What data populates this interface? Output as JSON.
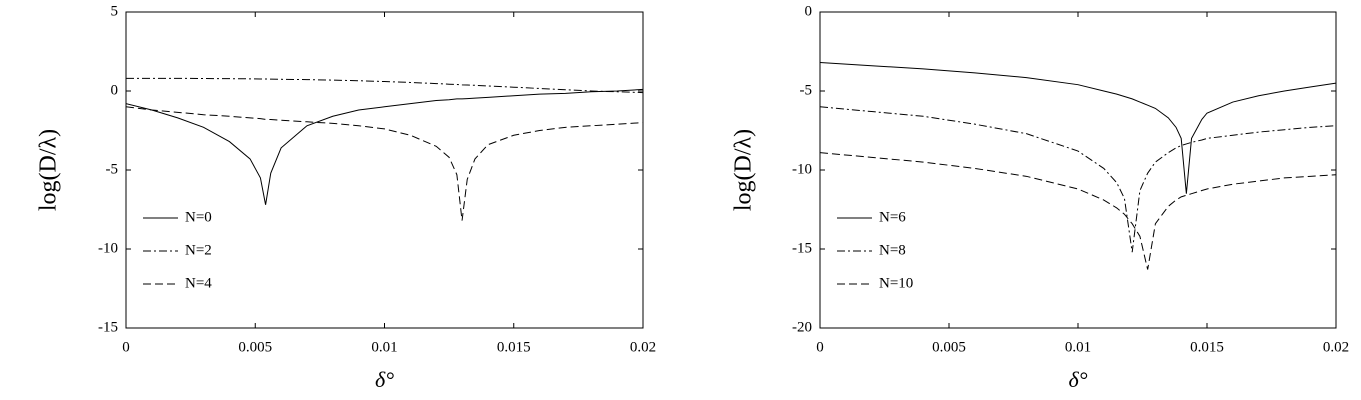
{
  "chart_data": [
    {
      "type": "line",
      "xlabel": "δ°",
      "ylabel": "log(D/λ)",
      "x": [
        0,
        0.001,
        0.002,
        0.003,
        0.004,
        0.0048,
        0.0052,
        0.0054,
        0.0056,
        0.006,
        0.007,
        0.008,
        0.009,
        0.01,
        0.011,
        0.012,
        0.0125,
        0.0128,
        0.013,
        0.0132,
        0.0135,
        0.014,
        0.015,
        0.016,
        0.017,
        0.018,
        0.019,
        0.02
      ],
      "xlim": [
        0,
        0.02
      ],
      "xticks": [
        0,
        0.005,
        0.01,
        0.015,
        0.02
      ],
      "ylim": [
        -15,
        5
      ],
      "yticks": [
        -15,
        -10,
        -5,
        0,
        5
      ],
      "legend": "lower left",
      "series": [
        {
          "name": "N=0",
          "color": "#000000",
          "dash": "solid",
          "values": [
            -0.8,
            -1.2,
            -1.7,
            -2.3,
            -3.2,
            -4.3,
            -5.5,
            -7.2,
            -5.2,
            -3.6,
            -2.2,
            -1.6,
            -1.2,
            -1.0,
            -0.8,
            -0.6,
            -0.55,
            -0.5,
            -0.5,
            -0.48,
            -0.45,
            -0.4,
            -0.3,
            -0.2,
            -0.15,
            -0.05,
            0,
            0.1
          ]
        },
        {
          "name": "N=2",
          "color": "#000000",
          "dash": "dashdot",
          "values": [
            0.8,
            0.8,
            0.8,
            0.79,
            0.78,
            0.77,
            0.76,
            0.76,
            0.75,
            0.74,
            0.72,
            0.69,
            0.65,
            0.6,
            0.54,
            0.47,
            0.43,
            0.41,
            0.39,
            0.38,
            0.36,
            0.32,
            0.24,
            0.16,
            0.08,
            0,
            -0.05,
            -0.1
          ]
        },
        {
          "name": "N=4",
          "color": "#000000",
          "dash": "dashed",
          "values": [
            -1.0,
            -1.2,
            -1.35,
            -1.5,
            -1.6,
            -1.7,
            -1.75,
            -1.8,
            -1.8,
            -1.85,
            -1.95,
            -2.05,
            -2.2,
            -2.4,
            -2.8,
            -3.5,
            -4.2,
            -5.3,
            -8.2,
            -5.6,
            -4.3,
            -3.4,
            -2.8,
            -2.5,
            -2.3,
            -2.2,
            -2.1,
            -2.0
          ]
        }
      ]
    },
    {
      "type": "line",
      "xlabel": "δ°",
      "ylabel": "log(D/λ)",
      "x": [
        0,
        0.002,
        0.004,
        0.006,
        0.008,
        0.01,
        0.011,
        0.0115,
        0.0118,
        0.0121,
        0.0124,
        0.0127,
        0.013,
        0.0135,
        0.0138,
        0.014,
        0.0142,
        0.0144,
        0.0148,
        0.015,
        0.016,
        0.017,
        0.018,
        0.019,
        0.02
      ],
      "xlim": [
        0,
        0.02
      ],
      "xticks": [
        0,
        0.005,
        0.01,
        0.015,
        0.02
      ],
      "ylim": [
        -20,
        0
      ],
      "yticks": [
        -20,
        -15,
        -10,
        -5,
        0
      ],
      "legend": "lower left",
      "series": [
        {
          "name": "N=6",
          "color": "#000000",
          "dash": "solid",
          "values": [
            -3.2,
            -3.4,
            -3.6,
            -3.85,
            -4.15,
            -4.6,
            -5.0,
            -5.2,
            -5.35,
            -5.5,
            -5.7,
            -5.9,
            -6.1,
            -6.7,
            -7.3,
            -8.0,
            -11.5,
            -8.0,
            -6.8,
            -6.4,
            -5.7,
            -5.3,
            -5.0,
            -4.75,
            -4.5
          ]
        },
        {
          "name": "N=8",
          "color": "#000000",
          "dash": "dashdot",
          "values": [
            -6.0,
            -6.3,
            -6.6,
            -7.1,
            -7.7,
            -8.8,
            -9.9,
            -10.8,
            -11.8,
            -15.2,
            -11.3,
            -10.2,
            -9.5,
            -8.9,
            -8.6,
            -8.45,
            -8.35,
            -8.25,
            -8.1,
            -8.0,
            -7.8,
            -7.6,
            -7.45,
            -7.3,
            -7.2
          ]
        },
        {
          "name": "N=10",
          "color": "#000000",
          "dash": "dashed",
          "values": [
            -8.9,
            -9.2,
            -9.5,
            -9.9,
            -10.4,
            -11.2,
            -11.9,
            -12.4,
            -12.8,
            -13.4,
            -14.2,
            -16.3,
            -13.4,
            -12.3,
            -11.9,
            -11.7,
            -11.6,
            -11.5,
            -11.3,
            -11.2,
            -10.9,
            -10.7,
            -10.5,
            -10.4,
            -10.3
          ]
        }
      ]
    }
  ]
}
